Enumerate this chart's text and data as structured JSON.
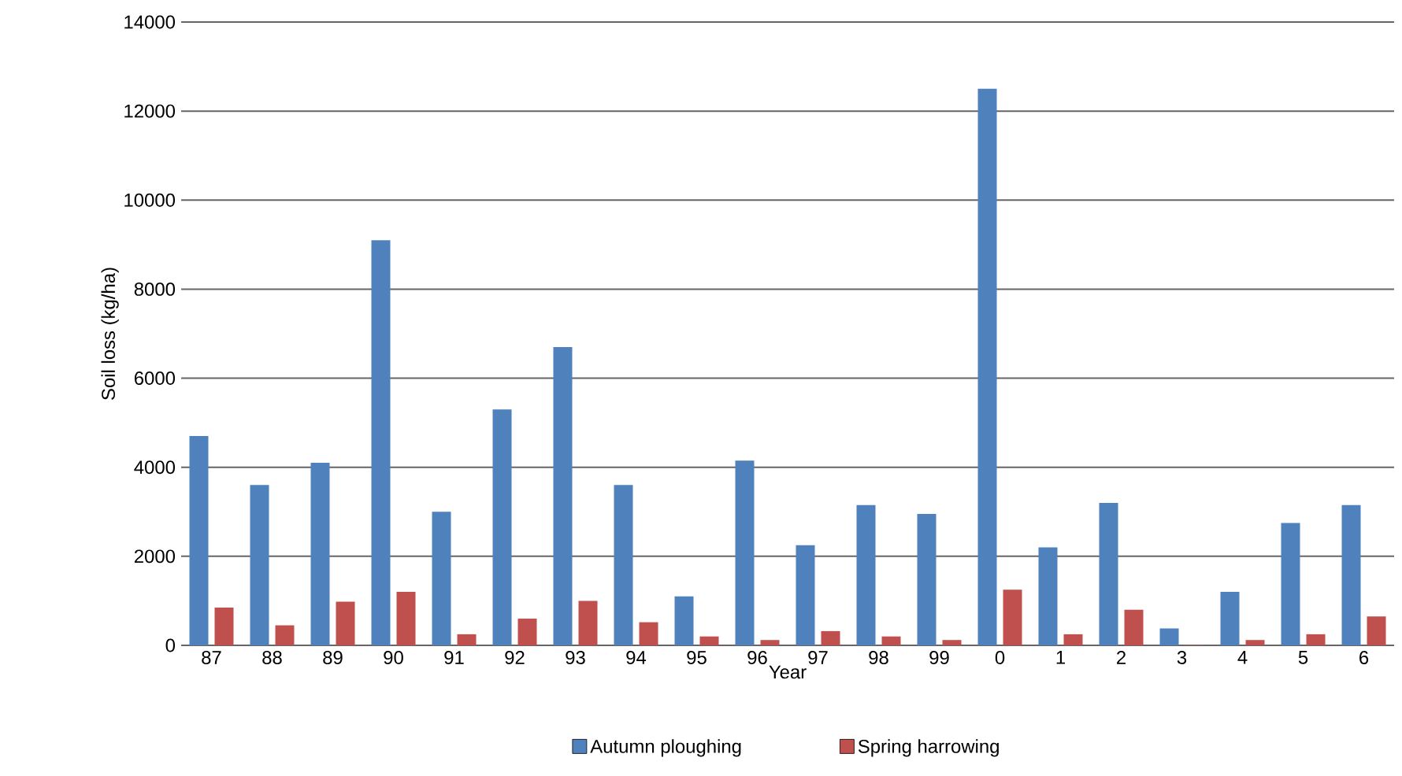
{
  "chart_data": {
    "type": "bar",
    "xlabel": "Year",
    "ylabel": "Soil loss (kg/ha)",
    "categories": [
      "87",
      "88",
      "89",
      "90",
      "91",
      "92",
      "93",
      "94",
      "95",
      "96",
      "97",
      "98",
      "99",
      "0",
      "1",
      "2",
      "3",
      "4",
      "5",
      "6"
    ],
    "series": [
      {
        "name": "Autumn ploughing",
        "color": "#4f81bd",
        "values": [
          4700,
          3600,
          4100,
          9100,
          3000,
          5300,
          6700,
          3600,
          1100,
          4150,
          2250,
          3150,
          2950,
          12500,
          2200,
          3200,
          380,
          1200,
          2750,
          3150
        ]
      },
      {
        "name": "Spring harrowing",
        "color": "#c0504d",
        "values": [
          850,
          450,
          980,
          1200,
          250,
          600,
          1000,
          520,
          200,
          120,
          320,
          200,
          120,
          1250,
          250,
          800,
          10,
          120,
          250,
          650
        ]
      }
    ],
    "ylim": [
      0,
      14000
    ],
    "yticks": [
      0,
      2000,
      4000,
      6000,
      8000,
      10000,
      12000,
      14000
    ],
    "grid": "y",
    "legend": "bottom"
  }
}
